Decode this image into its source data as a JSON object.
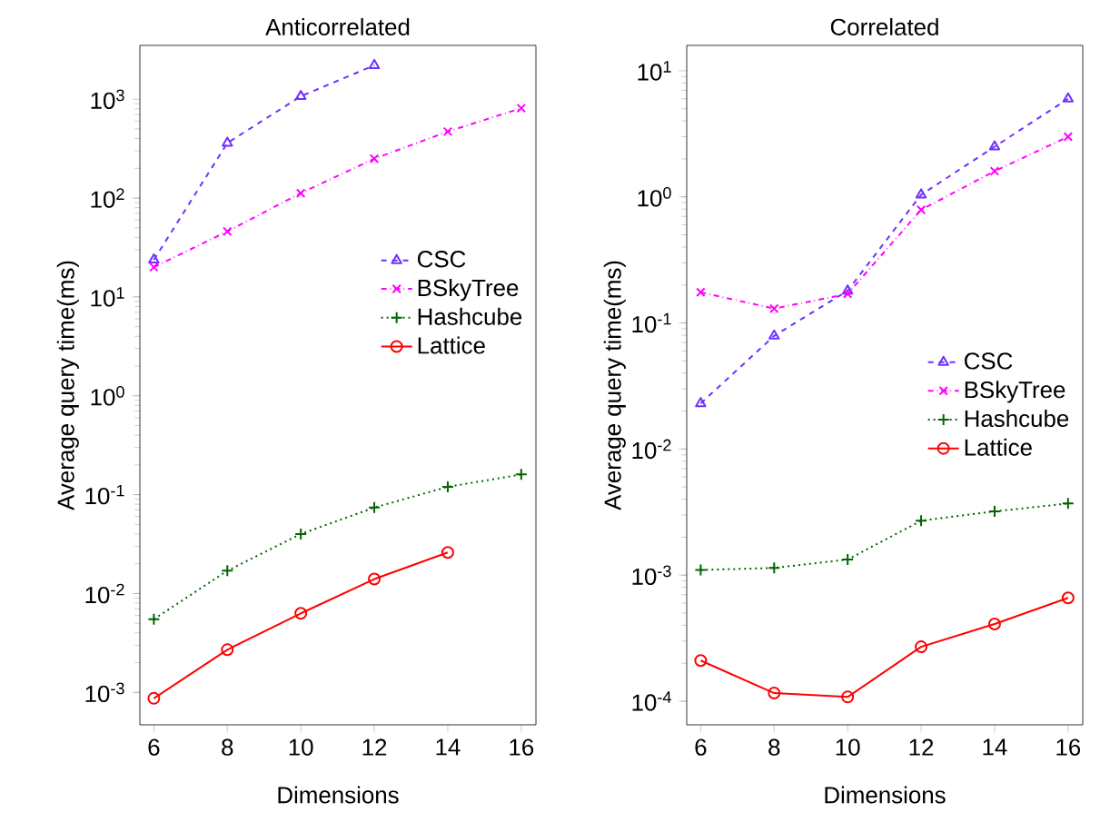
{
  "chart_data": [
    {
      "type": "line",
      "title": "Anticorrelated",
      "xlabel": "Dimensions",
      "ylabel": "Average query time(ms)",
      "log": "y",
      "legend": "right",
      "grid": false,
      "x": [
        6,
        8,
        10,
        12,
        14,
        16
      ],
      "xlim": [
        5.62,
        16.4
      ],
      "xticks": [
        6,
        8,
        10,
        12,
        14,
        16
      ],
      "ylim": [
        0.00047,
        3500
      ],
      "yticks": [
        {
          "value": 0.001,
          "label": "10$^{-3}$"
        },
        {
          "value": 0.01,
          "label": "10$^{-2}$"
        },
        {
          "value": 0.1,
          "label": "10$^{-1}$"
        },
        {
          "value": 1,
          "label": "10$^{0}$"
        },
        {
          "value": 10,
          "label": "10$^{1}$"
        },
        {
          "value": 100,
          "label": "10$^{2}$"
        },
        {
          "value": 1000,
          "label": "10$^{3}$"
        }
      ],
      "series": [
        {
          "name": "CSC",
          "color": "#7030ff",
          "marker": "triangle",
          "line_style": "dashed",
          "values": [
            23.7,
            360,
            1070,
            2200,
            null,
            null
          ]
        },
        {
          "name": "BSkyTree",
          "color": "#ff00ff",
          "marker": "cross",
          "line_style": "dashdot",
          "values": [
            20,
            46,
            112,
            250,
            470,
            810
          ]
        },
        {
          "name": "Hashcube",
          "color": "#006400",
          "marker": "plus",
          "line_style": "dotted",
          "values": [
            0.0055,
            0.017,
            0.04,
            0.074,
            0.12,
            0.16
          ]
        },
        {
          "name": "Lattice",
          "color": "#ff0000",
          "marker": "circle",
          "line_style": "solid",
          "values": [
            0.00087,
            0.0027,
            0.0063,
            0.014,
            0.026,
            null
          ]
        }
      ]
    },
    {
      "type": "line",
      "title": "Correlated",
      "xlabel": "Dimensions",
      "ylabel": "Average query time(ms)",
      "log": "y",
      "legend": "right",
      "grid": false,
      "x": [
        6,
        8,
        10,
        12,
        14,
        16
      ],
      "xlim": [
        5.62,
        16.4
      ],
      "xticks": [
        6,
        8,
        10,
        12,
        14,
        16
      ],
      "ylim": [
        6.5e-05,
        15.9
      ],
      "yticks": [
        {
          "value": 0.0001,
          "label": "10$^{-4}$"
        },
        {
          "value": 0.001,
          "label": "10$^{-3}$"
        },
        {
          "value": 0.01,
          "label": "10$^{-2}$"
        },
        {
          "value": 0.1,
          "label": "10$^{-1}$"
        },
        {
          "value": 1,
          "label": "10$^{0}$"
        },
        {
          "value": 10,
          "label": "10$^{1}$"
        }
      ],
      "series": [
        {
          "name": "CSC",
          "color": "#7030ff",
          "marker": "triangle",
          "line_style": "dashed",
          "values": [
            0.023,
            0.079,
            0.18,
            1.04,
            2.5,
            6.0
          ]
        },
        {
          "name": "BSkyTree",
          "color": "#ff00ff",
          "marker": "cross",
          "line_style": "dashdot",
          "values": [
            0.175,
            0.13,
            0.17,
            0.79,
            1.6,
            3.0
          ]
        },
        {
          "name": "Hashcube",
          "color": "#006400",
          "marker": "plus",
          "line_style": "dotted",
          "values": [
            0.0011,
            0.00114,
            0.00133,
            0.0027,
            0.0032,
            0.0037
          ]
        },
        {
          "name": "Lattice",
          "color": "#ff0000",
          "marker": "circle",
          "line_style": "solid",
          "values": [
            0.00021,
            0.000116,
            0.000108,
            0.00027,
            0.00041,
            0.00066
          ]
        }
      ]
    }
  ]
}
